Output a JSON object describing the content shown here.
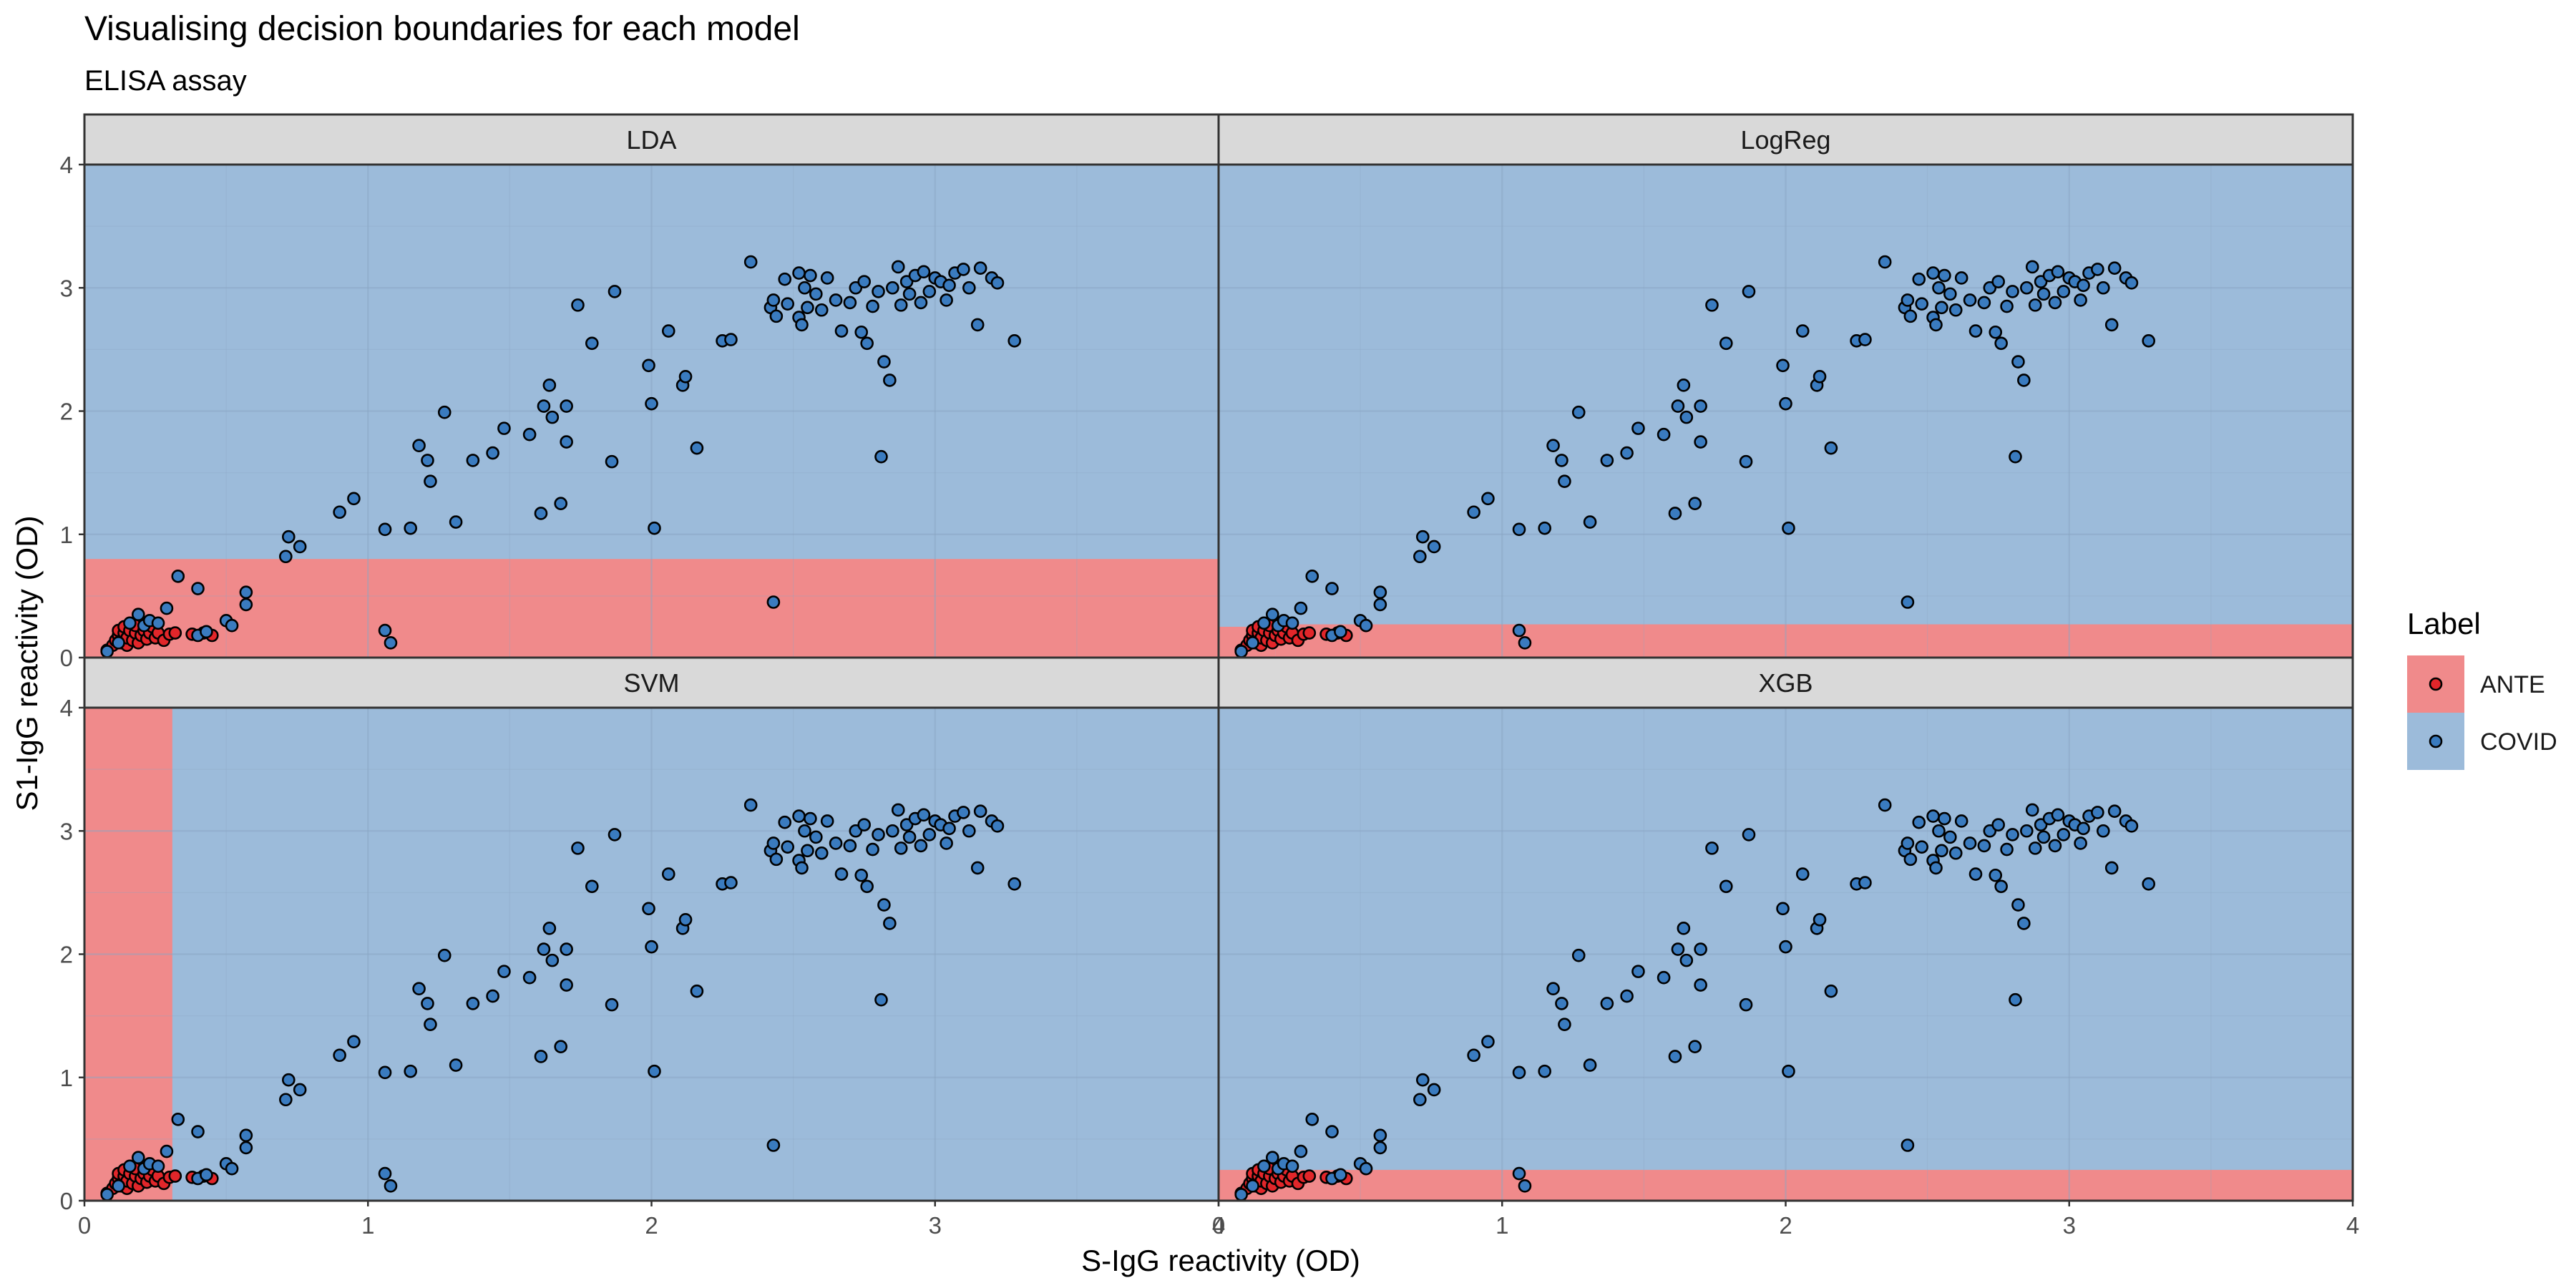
{
  "title": "Visualising decision boundaries for each model",
  "subtitle": "ELISA assay",
  "colors": {
    "ANTE": "#f08a8b",
    "COVID": "#9cbbda",
    "ANTE_point": "#e2262a",
    "COVID_point": "#3a7bbf",
    "strip": "#d9d9d9",
    "border": "#333333"
  },
  "chart_data": {
    "type": "scatter",
    "xlabel": "S-IgG reactivity (OD)",
    "ylabel": "S1-IgG reactivity (OD)",
    "xlim": [
      0,
      4
    ],
    "ylim": [
      0,
      4
    ],
    "x_ticks": [
      0,
      1,
      2,
      3,
      4
    ],
    "y_ticks": [
      0,
      1,
      2,
      3,
      4
    ],
    "grid": true,
    "legend": {
      "title": "Label",
      "position": "right",
      "entries": [
        "ANTE",
        "COVID"
      ]
    },
    "panels": [
      {
        "name": "LDA",
        "regions": [
          {
            "label": "ANTE",
            "x": [
              0,
              4
            ],
            "y": [
              0,
              0.8
            ]
          }
        ]
      },
      {
        "name": "LogReg",
        "regions": [
          {
            "label": "ANTE",
            "x": [
              0,
              0.2
            ],
            "y": [
              0,
              0.25
            ]
          },
          {
            "label": "ANTE",
            "x": [
              0.2,
              4
            ],
            "y": [
              0,
              0.27
            ]
          }
        ]
      },
      {
        "name": "SVM",
        "regions": [
          {
            "label": "ANTE",
            "x": [
              0,
              0.31
            ],
            "y": [
              0,
              4
            ]
          }
        ]
      },
      {
        "name": "XGB",
        "regions": [
          {
            "label": "ANTE",
            "x": [
              0,
              4
            ],
            "y": [
              0,
              0.25
            ]
          }
        ]
      }
    ],
    "series": [
      {
        "name": "ANTE",
        "points": [
          [
            0.08,
            0.06
          ],
          [
            0.1,
            0.1
          ],
          [
            0.11,
            0.14
          ],
          [
            0.12,
            0.18
          ],
          [
            0.12,
            0.22
          ],
          [
            0.13,
            0.12
          ],
          [
            0.14,
            0.2
          ],
          [
            0.14,
            0.25
          ],
          [
            0.15,
            0.1
          ],
          [
            0.15,
            0.16
          ],
          [
            0.16,
            0.22
          ],
          [
            0.17,
            0.14
          ],
          [
            0.18,
            0.2
          ],
          [
            0.18,
            0.26
          ],
          [
            0.19,
            0.12
          ],
          [
            0.2,
            0.18
          ],
          [
            0.21,
            0.22
          ],
          [
            0.22,
            0.15
          ],
          [
            0.23,
            0.2
          ],
          [
            0.24,
            0.25
          ],
          [
            0.25,
            0.16
          ],
          [
            0.26,
            0.2
          ],
          [
            0.28,
            0.14
          ],
          [
            0.3,
            0.19
          ],
          [
            0.32,
            0.2
          ],
          [
            0.38,
            0.19
          ],
          [
            0.42,
            0.2
          ],
          [
            0.45,
            0.18
          ]
        ]
      },
      {
        "name": "COVID",
        "points": [
          [
            0.08,
            0.05
          ],
          [
            0.12,
            0.12
          ],
          [
            0.16,
            0.28
          ],
          [
            0.19,
            0.35
          ],
          [
            0.21,
            0.26
          ],
          [
            0.23,
            0.3
          ],
          [
            0.26,
            0.28
          ],
          [
            0.29,
            0.4
          ],
          [
            0.33,
            0.66
          ],
          [
            0.4,
            0.56
          ],
          [
            0.4,
            0.18
          ],
          [
            0.43,
            0.21
          ],
          [
            0.5,
            0.3
          ],
          [
            0.52,
            0.26
          ],
          [
            0.57,
            0.43
          ],
          [
            0.57,
            0.53
          ],
          [
            0.71,
            0.82
          ],
          [
            0.72,
            0.98
          ],
          [
            0.76,
            0.9
          ],
          [
            0.9,
            1.18
          ],
          [
            0.95,
            1.29
          ],
          [
            1.06,
            1.04
          ],
          [
            1.06,
            0.22
          ],
          [
            1.08,
            0.12
          ],
          [
            1.15,
            1.05
          ],
          [
            1.18,
            1.72
          ],
          [
            1.21,
            1.6
          ],
          [
            1.22,
            1.43
          ],
          [
            1.27,
            1.99
          ],
          [
            1.31,
            1.1
          ],
          [
            1.37,
            1.6
          ],
          [
            1.44,
            1.66
          ],
          [
            1.48,
            1.86
          ],
          [
            1.57,
            1.81
          ],
          [
            1.61,
            1.17
          ],
          [
            1.62,
            2.04
          ],
          [
            1.64,
            2.21
          ],
          [
            1.65,
            1.95
          ],
          [
            1.68,
            1.25
          ],
          [
            1.7,
            1.75
          ],
          [
            1.7,
            2.04
          ],
          [
            1.74,
            2.86
          ],
          [
            1.79,
            2.55
          ],
          [
            1.86,
            1.59
          ],
          [
            1.87,
            2.97
          ],
          [
            1.99,
            2.37
          ],
          [
            2.0,
            2.06
          ],
          [
            2.01,
            1.05
          ],
          [
            2.06,
            2.65
          ],
          [
            2.11,
            2.21
          ],
          [
            2.12,
            2.28
          ],
          [
            2.16,
            1.7
          ],
          [
            2.25,
            2.57
          ],
          [
            2.28,
            2.58
          ],
          [
            2.35,
            3.21
          ],
          [
            2.42,
            2.84
          ],
          [
            2.43,
            2.9
          ],
          [
            2.43,
            0.45
          ],
          [
            2.44,
            2.77
          ],
          [
            2.47,
            3.07
          ],
          [
            2.48,
            2.87
          ],
          [
            2.52,
            2.76
          ],
          [
            2.52,
            3.12
          ],
          [
            2.53,
            2.7
          ],
          [
            2.54,
            3.0
          ],
          [
            2.55,
            2.84
          ],
          [
            2.56,
            3.1
          ],
          [
            2.58,
            2.95
          ],
          [
            2.6,
            2.82
          ],
          [
            2.62,
            3.08
          ],
          [
            2.65,
            2.9
          ],
          [
            2.67,
            2.65
          ],
          [
            2.7,
            2.88
          ],
          [
            2.72,
            3.0
          ],
          [
            2.74,
            2.64
          ],
          [
            2.75,
            3.05
          ],
          [
            2.76,
            2.55
          ],
          [
            2.78,
            2.85
          ],
          [
            2.8,
            2.97
          ],
          [
            2.81,
            1.63
          ],
          [
            2.82,
            2.4
          ],
          [
            2.84,
            2.25
          ],
          [
            2.85,
            3.0
          ],
          [
            2.87,
            3.17
          ],
          [
            2.88,
            2.86
          ],
          [
            2.9,
            3.05
          ],
          [
            2.91,
            2.95
          ],
          [
            2.93,
            3.1
          ],
          [
            2.95,
            2.88
          ],
          [
            2.96,
            3.13
          ],
          [
            2.98,
            2.97
          ],
          [
            3.0,
            3.08
          ],
          [
            3.02,
            3.05
          ],
          [
            3.04,
            2.9
          ],
          [
            3.05,
            3.02
          ],
          [
            3.07,
            3.12
          ],
          [
            3.1,
            3.15
          ],
          [
            3.12,
            3.0
          ],
          [
            3.15,
            2.7
          ],
          [
            3.16,
            3.16
          ],
          [
            3.2,
            3.08
          ],
          [
            3.22,
            3.04
          ],
          [
            3.28,
            2.57
          ]
        ]
      }
    ]
  }
}
